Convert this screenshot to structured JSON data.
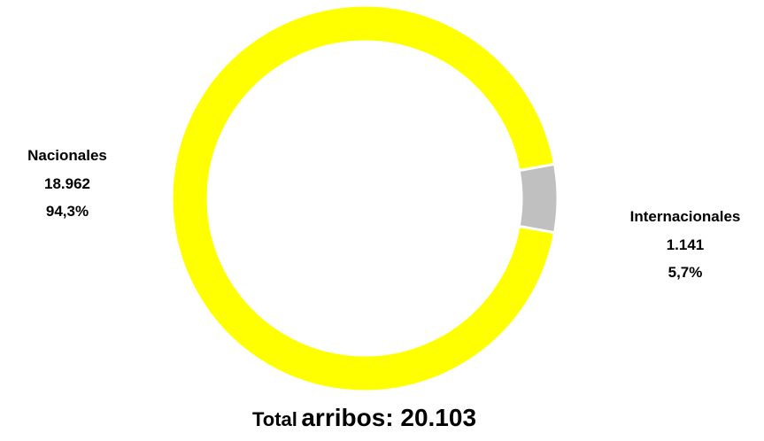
{
  "chart_data": {
    "type": "pie",
    "donut": true,
    "categories": [
      "Nacionales",
      "Internacionales"
    ],
    "values": [
      18962,
      1141
    ],
    "value_labels": [
      "18.962",
      "1.141"
    ],
    "percent_labels": [
      "94,3%",
      "5,7%"
    ],
    "colors": [
      "#FFFF00",
      "#C0C0C0"
    ],
    "legend": "none",
    "footer": {
      "prefix": "Total",
      "label": "arribos: 20.103"
    }
  }
}
